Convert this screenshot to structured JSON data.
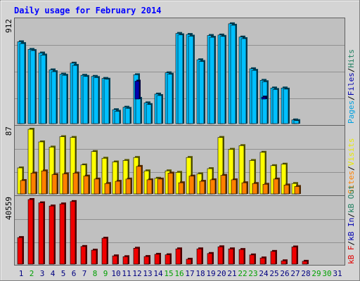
{
  "chart_data": [
    {
      "type": "bar",
      "panel": "pages-files-hits",
      "title": "Daily usage for February 2014",
      "categories": [
        "1",
        "2",
        "3",
        "4",
        "5",
        "6",
        "7",
        "8",
        "9",
        "10",
        "11",
        "12",
        "13",
        "14",
        "15",
        "16",
        "17",
        "18",
        "19",
        "20",
        "21",
        "22",
        "23",
        "24",
        "25",
        "26",
        "27",
        "28",
        "29",
        "30",
        "31"
      ],
      "ylabel_max": "912",
      "ylim": [
        0,
        912
      ],
      "grid": true,
      "legend": [
        "Pages",
        "Files",
        "Hits"
      ],
      "series": [
        {
          "name": "Hits",
          "values": [
            728,
            660,
            628,
            478,
            440,
            538,
            430,
            420,
            402,
            124,
            146,
            435,
            185,
            263,
            452,
            802,
            793,
            568,
            784,
            788,
            888,
            770,
            488,
            385,
            317,
            317,
            33,
            0,
            0,
            0,
            0
          ]
        },
        {
          "name": "Files",
          "values": [
            712,
            650,
            610,
            462,
            430,
            518,
            420,
            410,
            395,
            110,
            136,
            225,
            170,
            250,
            440,
            790,
            778,
            553,
            768,
            776,
            875,
            756,
            474,
            373,
            304,
            307,
            27,
            0,
            0,
            0,
            0
          ]
        },
        {
          "name": "Pages",
          "values": [
            0,
            0,
            0,
            0,
            0,
            0,
            0,
            0,
            0,
            0,
            0,
            378,
            0,
            0,
            0,
            0,
            0,
            0,
            0,
            0,
            0,
            0,
            0,
            236,
            0,
            0,
            0,
            0,
            0,
            0,
            0
          ]
        }
      ]
    },
    {
      "type": "bar",
      "panel": "visits-sites",
      "categories": [
        "1",
        "2",
        "3",
        "4",
        "5",
        "6",
        "7",
        "8",
        "9",
        "10",
        "11",
        "12",
        "13",
        "14",
        "15",
        "16",
        "17",
        "18",
        "19",
        "20",
        "21",
        "22",
        "23",
        "24",
        "25",
        "26",
        "27",
        "28",
        "29",
        "30",
        "31"
      ],
      "ylabel_max": "87",
      "ylim": [
        0,
        87
      ],
      "grid": true,
      "legend": [
        "Visits",
        "Sites"
      ],
      "series": [
        {
          "name": "Visits",
          "values": [
            35,
            87,
            70,
            63,
            77,
            76,
            39,
            57,
            48,
            43,
            45,
            49,
            31,
            21,
            31,
            29,
            49,
            27,
            34,
            76,
            60,
            65,
            45,
            56,
            38,
            40,
            14,
            0,
            0,
            0,
            0
          ]
        },
        {
          "name": "Sites",
          "values": [
            18,
            28,
            31,
            26,
            27,
            28,
            24,
            20,
            14,
            17,
            20,
            37,
            19,
            20,
            28,
            15,
            24,
            17,
            19,
            25,
            19,
            15,
            14,
            13,
            20,
            12,
            10,
            0,
            0,
            0,
            0
          ]
        }
      ]
    },
    {
      "type": "bar",
      "panel": "kbytes",
      "categories": [
        "1",
        "2",
        "3",
        "4",
        "5",
        "6",
        "7",
        "8",
        "9",
        "10",
        "11",
        "12",
        "13",
        "14",
        "15",
        "16",
        "17",
        "18",
        "19",
        "20",
        "21",
        "22",
        "23",
        "24",
        "25",
        "26",
        "27",
        "28",
        "29",
        "30",
        "31"
      ],
      "ylabel_max": "40559",
      "ylim": [
        0,
        40559
      ],
      "grid": true,
      "legend": [
        "kB F",
        "kB In",
        "kB Out"
      ],
      "series": [
        {
          "name": "kB F",
          "values": [
            16700,
            40559,
            38500,
            36500,
            37800,
            39300,
            11100,
            8800,
            16300,
            5200,
            4700,
            10000,
            4800,
            6200,
            5900,
            9600,
            3100,
            9600,
            6700,
            10900,
            9600,
            9200,
            5800,
            3900,
            8000,
            2100,
            10800,
            1800,
            0,
            0,
            0
          ]
        }
      ]
    }
  ],
  "colors": {
    "hits": "#00c0ff",
    "files": "#0080c0",
    "pages": "#0000b0",
    "visits": "#ffff00",
    "sites": "#ff8000",
    "kbytes": "#f00000",
    "title": "#0000ff",
    "legend_pages": "#00a0e0",
    "legend_files": "#0000b0",
    "legend_hits": "#208060",
    "legend_visits": "#e8e800",
    "legend_sites": "#ff8000",
    "legend_kbin": "#0000b0",
    "legend_kbout": "#208060",
    "legend_kbf": "#e00000",
    "weekend_day": "#00a000",
    "weekday": "#000080"
  },
  "legend_text": {
    "panel1": [
      "Pages",
      "/",
      "Files",
      "/",
      "Hits"
    ],
    "panel2": [
      "Sites",
      "/",
      "Visits"
    ],
    "panel3": [
      "kB F",
      "/",
      "kB In",
      "/",
      "kB Out"
    ]
  },
  "weekend_days": [
    2,
    8,
    9,
    15,
    16,
    22,
    23,
    29,
    30
  ]
}
